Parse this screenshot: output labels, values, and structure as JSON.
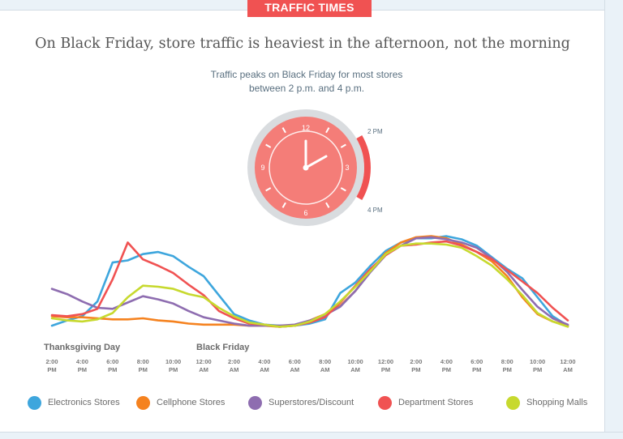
{
  "badge": "TRAFFIC TIMES",
  "headline": "On Black Friday, store traffic is heaviest in the afternoon, not the morning",
  "subtitle": [
    "Traffic peaks on Black Friday for most stores",
    "between 2 p.m. and 4 p.m."
  ],
  "clock": {
    "numbers": [
      "12",
      "3",
      "6",
      "9"
    ],
    "range_start_label": "2 PM",
    "range_end_label": "4 PM",
    "face_color": "#f47d78",
    "highlight_color": "#f05252"
  },
  "day_labels": [
    "Thanksgiving Day",
    "Black Friday"
  ],
  "chart_data": {
    "type": "line",
    "title": "",
    "xlabel": "",
    "ylabel": "",
    "x": [
      "2:00 PM",
      "3:00 PM",
      "4:00 PM",
      "5:00 PM",
      "6:00 PM",
      "7:00 PM",
      "8:00 PM",
      "9:00 PM",
      "10:00 PM",
      "11:00 PM",
      "12:00 AM",
      "1:00 AM",
      "2:00 AM",
      "3:00 AM",
      "4:00 AM",
      "5:00 AM",
      "6:00 AM",
      "7:00 AM",
      "8:00 AM",
      "9:00 AM",
      "10:00 AM",
      "11:00 AM",
      "12:00 PM",
      "1:00 PM",
      "2:00 PM",
      "3:00 PM",
      "4:00 PM",
      "5:00 PM",
      "6:00 PM",
      "7:00 PM",
      "8:00 PM",
      "9:00 PM",
      "10:00 PM",
      "11:00 PM",
      "12:00 AM"
    ],
    "tick_labels": [
      [
        "2:00",
        "PM"
      ],
      [
        "4:00",
        "PM"
      ],
      [
        "6:00",
        "PM"
      ],
      [
        "8:00",
        "PM"
      ],
      [
        "10:00",
        "PM"
      ],
      [
        "12:00",
        "AM"
      ],
      [
        "2:00",
        "AM"
      ],
      [
        "4:00",
        "AM"
      ],
      [
        "6:00",
        "AM"
      ],
      [
        "8:00",
        "AM"
      ],
      [
        "10:00",
        "AM"
      ],
      [
        "12:00",
        "PM"
      ],
      [
        "2:00",
        "PM"
      ],
      [
        "4:00",
        "PM"
      ],
      [
        "6:00",
        "PM"
      ],
      [
        "8:00",
        "PM"
      ],
      [
        "10:00",
        "PM"
      ],
      [
        "12:00",
        "AM"
      ]
    ],
    "ylim": [
      0,
      100
    ],
    "grid": false,
    "legend_position": "bottom",
    "series": [
      {
        "name": "Electronics Stores",
        "color": "#3ea6dd",
        "values": [
          3,
          8,
          12,
          26,
          63,
          65,
          71,
          73,
          69,
          59,
          50,
          32,
          14,
          8,
          4,
          3,
          3,
          5,
          9,
          34,
          44,
          60,
          74,
          82,
          86,
          86,
          88,
          85,
          79,
          68,
          57,
          48,
          30,
          12,
          3
        ]
      },
      {
        "name": "Cellphone Stores",
        "color": "#f5821f",
        "values": [
          12,
          11,
          11,
          10,
          9,
          9,
          10,
          8,
          7,
          5,
          4,
          4,
          4,
          3,
          3,
          2,
          3,
          8,
          14,
          22,
          36,
          55,
          72,
          82,
          87,
          88,
          86,
          80,
          73,
          64,
          50,
          30,
          14,
          7,
          3
        ]
      },
      {
        "name": "Superstores/Discount",
        "color": "#8e6db0",
        "values": [
          38,
          33,
          26,
          20,
          19,
          25,
          31,
          28,
          24,
          17,
          11,
          8,
          5,
          3,
          3,
          3,
          4,
          8,
          13,
          21,
          36,
          54,
          70,
          79,
          86,
          87,
          85,
          82,
          77,
          67,
          54,
          37,
          21,
          10,
          4
        ]
      },
      {
        "name": "Department Stores",
        "color": "#f05252",
        "values": [
          13,
          12,
          14,
          19,
          47,
          82,
          66,
          60,
          53,
          42,
          32,
          17,
          10,
          5,
          4,
          2,
          3,
          6,
          11,
          25,
          41,
          57,
          70,
          79,
          80,
          82,
          83,
          79,
          73,
          66,
          56,
          45,
          34,
          20,
          8
        ]
      },
      {
        "name": "Shopping Malls",
        "color": "#c7d92e",
        "values": [
          10,
          8,
          7,
          9,
          15,
          30,
          41,
          40,
          38,
          33,
          30,
          20,
          12,
          6,
          4,
          2,
          3,
          7,
          14,
          26,
          40,
          55,
          71,
          79,
          81,
          81,
          80,
          77,
          69,
          60,
          47,
          32,
          15,
          7,
          2
        ]
      }
    ]
  }
}
